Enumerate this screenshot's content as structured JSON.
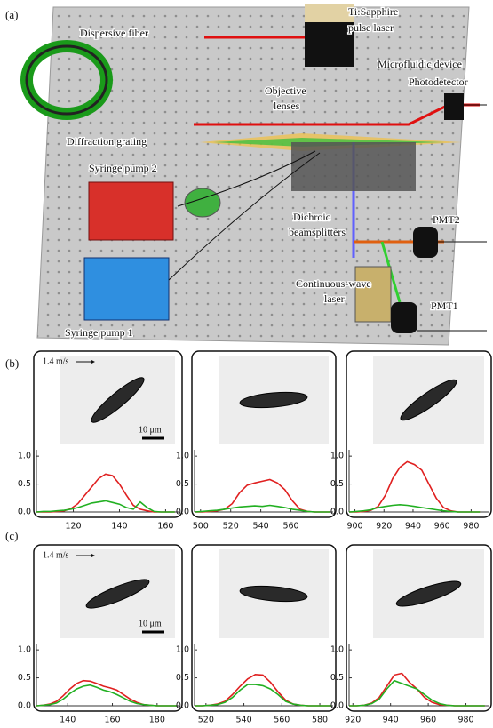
{
  "panel_labels": [
    "(a)",
    "(b)",
    "(c)"
  ],
  "diagram": {
    "labels": [
      "Dispersive fiber",
      "Ti:Sapphire",
      "pulse laser",
      "Microfluidic device",
      "Photodetector",
      "Objective",
      "lenses",
      "Diffraction grating",
      "Syringe pump 2",
      "Dichroic",
      "beamsplitters",
      "PMT2",
      "Continuous-wave",
      "laser",
      "PMT1",
      "Syringe pump 1"
    ]
  },
  "chart_data": [
    {
      "type": "line",
      "image_annotations": [
        "1.4 m/s",
        "10 μm"
      ],
      "x": [
        104,
        107,
        110,
        113,
        116,
        119,
        122,
        125,
        128,
        131,
        134,
        137,
        140,
        143,
        146,
        149,
        152,
        155,
        158,
        161,
        164
      ],
      "series": [
        {
          "color": "#e02020",
          "values": [
            0,
            0,
            0,
            0.01,
            0.02,
            0.06,
            0.15,
            0.3,
            0.45,
            0.6,
            0.68,
            0.65,
            0.5,
            0.3,
            0.12,
            0.05,
            0.02,
            0,
            0,
            0,
            0
          ]
        },
        {
          "color": "#22b022",
          "values": [
            0,
            0.01,
            0.01,
            0.02,
            0.03,
            0.05,
            0.08,
            0.12,
            0.16,
            0.18,
            0.2,
            0.17,
            0.14,
            0.08,
            0.05,
            0.18,
            0.08,
            0.01,
            0,
            0,
            0
          ]
        }
      ],
      "xlim": [
        104,
        166
      ],
      "xticks": [
        120,
        140,
        160
      ],
      "ylim": [
        0,
        1.05
      ],
      "yticks": [
        {
          "value": 0,
          "label": "0.0"
        },
        {
          "value": 0.5,
          "label": "0.5"
        },
        {
          "value": 1,
          "label": "1.0"
        }
      ]
    },
    {
      "type": "line",
      "x": [
        496,
        501,
        506,
        511,
        516,
        521,
        526,
        531,
        536,
        541,
        546,
        551,
        556,
        561,
        566,
        571,
        576,
        581,
        586
      ],
      "series": [
        {
          "color": "#e02020",
          "values": [
            0,
            0,
            0.01,
            0.02,
            0.05,
            0.15,
            0.35,
            0.48,
            0.52,
            0.55,
            0.58,
            0.52,
            0.4,
            0.2,
            0.05,
            0.01,
            0,
            0,
            0
          ]
        },
        {
          "color": "#22b022",
          "values": [
            0,
            0.01,
            0.02,
            0.03,
            0.05,
            0.07,
            0.09,
            0.1,
            0.11,
            0.1,
            0.12,
            0.1,
            0.08,
            0.05,
            0.03,
            0.01,
            0,
            0,
            0
          ]
        }
      ],
      "xlim": [
        496,
        588
      ],
      "xticks": [
        500,
        520,
        540,
        560
      ],
      "ylim": [
        0,
        1.05
      ],
      "yticks": [
        {
          "value": 0,
          "label": "0.0"
        },
        {
          "value": 0.5,
          "label": "0.5"
        },
        {
          "value": 1,
          "label": "1.0"
        }
      ]
    },
    {
      "type": "line",
      "x": [
        896,
        901,
        906,
        911,
        916,
        921,
        926,
        931,
        936,
        941,
        946,
        951,
        956,
        961,
        966,
        971,
        976,
        981,
        986
      ],
      "series": [
        {
          "color": "#e02020",
          "values": [
            0,
            0,
            0.01,
            0.03,
            0.1,
            0.3,
            0.6,
            0.8,
            0.9,
            0.85,
            0.75,
            0.5,
            0.25,
            0.08,
            0.02,
            0,
            0,
            0,
            0
          ]
        },
        {
          "color": "#22b022",
          "values": [
            0,
            0.01,
            0.02,
            0.04,
            0.08,
            0.1,
            0.12,
            0.13,
            0.12,
            0.1,
            0.08,
            0.06,
            0.04,
            0.02,
            0.01,
            0,
            0,
            0,
            0
          ]
        }
      ],
      "xlim": [
        896,
        992
      ],
      "xticks": [
        900,
        920,
        940,
        960,
        980
      ],
      "ylim": [
        0,
        1.05
      ],
      "yticks": [
        {
          "value": 0,
          "label": "0.0"
        },
        {
          "value": 0.5,
          "label": "0.5"
        },
        {
          "value": 1,
          "label": "1.0"
        }
      ]
    },
    {
      "type": "line",
      "image_annotations": [
        "1.4 m/s",
        "10 μm"
      ],
      "x": [
        126,
        129,
        132,
        135,
        138,
        141,
        144,
        147,
        150,
        153,
        156,
        159,
        162,
        165,
        168,
        171,
        174,
        177,
        180,
        183,
        186,
        189
      ],
      "series": [
        {
          "color": "#e02020",
          "values": [
            0,
            0.01,
            0.03,
            0.08,
            0.18,
            0.3,
            0.4,
            0.45,
            0.44,
            0.4,
            0.35,
            0.32,
            0.28,
            0.2,
            0.12,
            0.06,
            0.02,
            0.01,
            0,
            0,
            0,
            0
          ]
        },
        {
          "color": "#22b022",
          "values": [
            0,
            0.01,
            0.02,
            0.05,
            0.12,
            0.22,
            0.3,
            0.35,
            0.37,
            0.33,
            0.28,
            0.25,
            0.2,
            0.14,
            0.08,
            0.04,
            0.02,
            0.01,
            0,
            0,
            0,
            0
          ]
        }
      ],
      "xlim": [
        126,
        190
      ],
      "xticks": [
        140,
        160,
        180
      ],
      "ylim": [
        0,
        1.05
      ],
      "yticks": [
        {
          "value": 0,
          "label": "0.0"
        },
        {
          "value": 0.5,
          "label": "0.5"
        },
        {
          "value": 1,
          "label": "1.0"
        }
      ]
    },
    {
      "type": "line",
      "x": [
        514,
        518,
        522,
        526,
        530,
        534,
        538,
        542,
        546,
        550,
        554,
        558,
        562,
        566,
        570,
        574,
        578,
        582,
        586
      ],
      "series": [
        {
          "color": "#e02020",
          "values": [
            0,
            0,
            0.01,
            0.03,
            0.08,
            0.2,
            0.35,
            0.48,
            0.56,
            0.55,
            0.42,
            0.25,
            0.1,
            0.03,
            0.01,
            0,
            0,
            0,
            0
          ]
        },
        {
          "color": "#22b022",
          "values": [
            0,
            0,
            0.01,
            0.02,
            0.06,
            0.15,
            0.28,
            0.38,
            0.38,
            0.36,
            0.3,
            0.2,
            0.08,
            0.03,
            0.01,
            0,
            0,
            0,
            0
          ]
        }
      ],
      "xlim": [
        514,
        587
      ],
      "xticks": [
        520,
        540,
        560,
        580
      ],
      "ylim": [
        0,
        1.05
      ],
      "yticks": [
        {
          "value": 0,
          "label": "0.0"
        },
        {
          "value": 0.5,
          "label": "0.5"
        },
        {
          "value": 1,
          "label": "1.0"
        }
      ]
    },
    {
      "type": "line",
      "x": [
        918,
        922,
        926,
        930,
        934,
        938,
        942,
        946,
        950,
        954,
        958,
        962,
        966,
        970,
        974,
        978,
        982,
        986,
        990
      ],
      "series": [
        {
          "color": "#e02020",
          "values": [
            0,
            0,
            0.01,
            0.05,
            0.15,
            0.35,
            0.55,
            0.58,
            0.42,
            0.3,
            0.15,
            0.06,
            0.02,
            0.01,
            0,
            0,
            0,
            0,
            0
          ]
        },
        {
          "color": "#22b022",
          "values": [
            0,
            0,
            0.01,
            0.04,
            0.12,
            0.3,
            0.45,
            0.4,
            0.35,
            0.3,
            0.2,
            0.1,
            0.04,
            0.01,
            0,
            0,
            0,
            0,
            0
          ]
        }
      ],
      "xlim": [
        918,
        992
      ],
      "xticks": [
        920,
        940,
        960,
        980
      ],
      "ylim": [
        0,
        1.05
      ],
      "yticks": [
        {
          "value": 0,
          "label": "0.0"
        },
        {
          "value": 0.5,
          "label": "0.5"
        },
        {
          "value": 1,
          "label": "1.0"
        }
      ]
    }
  ]
}
